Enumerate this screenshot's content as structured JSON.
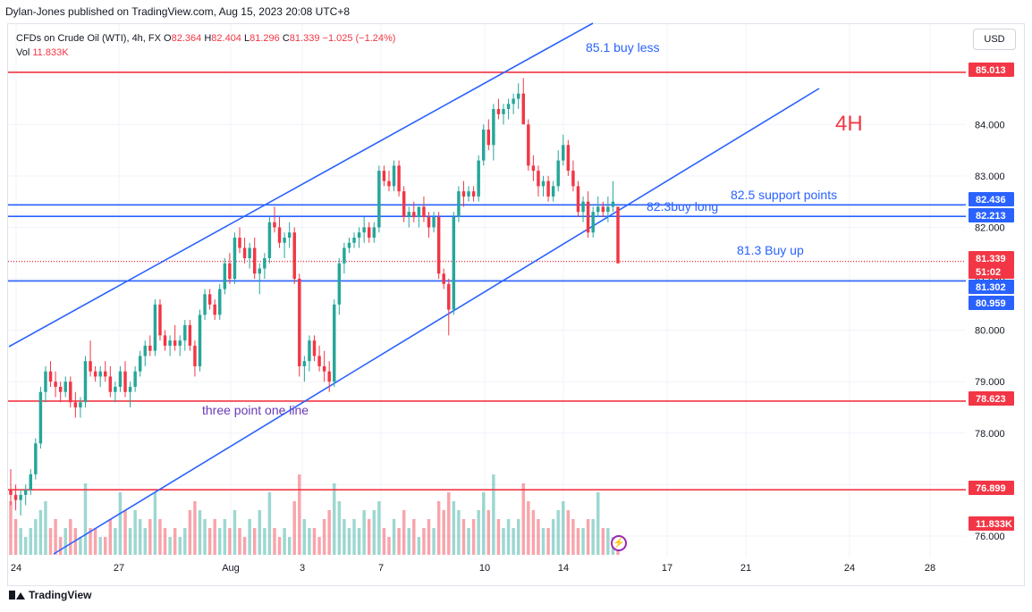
{
  "header": {
    "publisher": "Dylan-Jones published on TradingView.com, Aug 15, 2023 20:08 UTC+8"
  },
  "legend": {
    "symbol": "CFDs on Crude Oil (WTI), 4h, FX",
    "open_label": "O",
    "open": "82.364",
    "high_label": "H",
    "high": "82.404",
    "low_label": "L",
    "low": "81.296",
    "close_label": "C",
    "close": "81.339",
    "change": "−1.025 (−1.24%)",
    "vol_label": "Vol",
    "vol": "11.833K"
  },
  "currency_button": "USD",
  "footer": {
    "brand": "TradingView"
  },
  "colors": {
    "up": "#26a69a",
    "down": "#f23645",
    "blue": "#2962ff",
    "red": "#f23645",
    "purple": "#673ab7"
  },
  "chart_data": {
    "type": "candlestick",
    "symbol": "CFDs on Crude Oil (WTI)",
    "timeframe": "4h",
    "x_tick_labels": [
      "24",
      "27",
      "Aug",
      "3",
      "7",
      "10",
      "14",
      "17",
      "21",
      "24",
      "28"
    ],
    "y_tick_labels": [
      "76.000",
      "77.000",
      "78.000",
      "79.000",
      "80.000",
      "81.000",
      "82.000",
      "83.000",
      "84.000"
    ],
    "ylim": [
      75.6,
      85.95
    ],
    "price_line_labels": [
      {
        "text": "85.013",
        "value": 85.013,
        "color": "#f23645"
      },
      {
        "text": "82.436",
        "value": 82.436,
        "color": "#2962ff"
      },
      {
        "text": "82.213",
        "value": 82.213,
        "color": "#2962ff"
      },
      {
        "text": "81.339",
        "value": 81.339,
        "color": "#f23645"
      },
      {
        "text": "51:02",
        "value": 51.02,
        "color": "#f23645"
      },
      {
        "text": "81.302",
        "value": 81.302,
        "color": "#2962ff"
      },
      {
        "text": "80.959",
        "value": 80.959,
        "color": "#2962ff"
      },
      {
        "text": "78.623",
        "value": 78.623,
        "color": "#f23645"
      },
      {
        "text": "76.899",
        "value": 76.899,
        "color": "#f23645"
      },
      {
        "text": "11.833K",
        "value": 11.833,
        "color": "#f23645"
      }
    ],
    "horizontal_lines": [
      {
        "value": 85.013,
        "color": "#f23645"
      },
      {
        "value": 82.436,
        "color": "#2962ff"
      },
      {
        "value": 82.213,
        "color": "#2962ff"
      },
      {
        "value": 81.339,
        "color": "#f23645",
        "dotted": true
      },
      {
        "value": 80.959,
        "color": "#2962ff"
      },
      {
        "value": 78.623,
        "color": "#f23645"
      },
      {
        "value": 76.899,
        "color": "#f23645"
      }
    ],
    "annotations": [
      {
        "text": "85.1 buy less",
        "color": "#2962ff"
      },
      {
        "text": "4H",
        "color": "#f23645"
      },
      {
        "text": "82.5 support points",
        "color": "#2962ff"
      },
      {
        "text": "82.3buy long",
        "color": "#2962ff"
      },
      {
        "text": "81.3 Buy up",
        "color": "#2962ff"
      },
      {
        "text": "three point one line",
        "color": "#673ab7"
      }
    ],
    "candles": [
      [
        76.9,
        77.3,
        76.6,
        76.8,
        6
      ],
      [
        76.8,
        77.0,
        76.5,
        76.7,
        4
      ],
      [
        76.7,
        76.9,
        76.4,
        76.8,
        3
      ],
      [
        76.8,
        77.0,
        76.6,
        76.9,
        2
      ],
      [
        76.9,
        77.3,
        76.8,
        77.2,
        3
      ],
      [
        77.2,
        77.9,
        77.1,
        77.8,
        4
      ],
      [
        77.8,
        78.9,
        77.7,
        78.8,
        5
      ],
      [
        78.8,
        79.3,
        78.6,
        79.2,
        6
      ],
      [
        79.2,
        79.4,
        78.9,
        79.0,
        3
      ],
      [
        79.0,
        79.2,
        78.7,
        78.9,
        4
      ],
      [
        78.9,
        79.0,
        78.6,
        78.8,
        2
      ],
      [
        78.8,
        79.1,
        78.7,
        79.0,
        3
      ],
      [
        79.0,
        79.1,
        78.5,
        78.6,
        4
      ],
      [
        78.6,
        78.8,
        78.3,
        78.5,
        3
      ],
      [
        78.5,
        78.7,
        78.3,
        78.6,
        2
      ],
      [
        78.6,
        79.5,
        78.5,
        79.4,
        8
      ],
      [
        79.4,
        79.8,
        79.1,
        79.2,
        3
      ],
      [
        79.2,
        79.3,
        79.0,
        79.1,
        3
      ],
      [
        79.1,
        79.3,
        78.9,
        79.2,
        2
      ],
      [
        79.2,
        79.4,
        79.0,
        79.1,
        2
      ],
      [
        79.1,
        79.3,
        78.7,
        78.8,
        4
      ],
      [
        78.8,
        79.0,
        78.6,
        78.9,
        3
      ],
      [
        78.9,
        79.3,
        78.8,
        79.2,
        7
      ],
      [
        79.2,
        79.4,
        78.7,
        78.8,
        5
      ],
      [
        78.8,
        79.0,
        78.5,
        78.9,
        3
      ],
      [
        78.9,
        79.3,
        78.8,
        79.2,
        5
      ],
      [
        79.2,
        79.6,
        79.1,
        79.5,
        4
      ],
      [
        79.5,
        79.8,
        79.3,
        79.7,
        3
      ],
      [
        79.7,
        79.9,
        79.5,
        79.6,
        4
      ],
      [
        79.6,
        80.6,
        79.5,
        80.5,
        7
      ],
      [
        80.5,
        80.6,
        79.8,
        79.9,
        4
      ],
      [
        79.9,
        80.0,
        79.6,
        79.7,
        3
      ],
      [
        79.7,
        79.9,
        79.5,
        79.8,
        2
      ],
      [
        79.8,
        80.1,
        79.6,
        79.7,
        3
      ],
      [
        79.7,
        79.9,
        79.5,
        79.8,
        2
      ],
      [
        79.8,
        80.2,
        79.6,
        80.1,
        3
      ],
      [
        80.1,
        80.2,
        79.6,
        79.7,
        5
      ],
      [
        79.7,
        79.8,
        79.1,
        79.3,
        6
      ],
      [
        79.3,
        80.4,
        79.2,
        80.3,
        5
      ],
      [
        80.3,
        80.8,
        80.2,
        80.7,
        4
      ],
      [
        80.7,
        80.8,
        80.4,
        80.5,
        3
      ],
      [
        80.5,
        80.6,
        80.2,
        80.3,
        4
      ],
      [
        80.3,
        80.9,
        80.2,
        80.8,
        3
      ],
      [
        80.8,
        81.4,
        80.7,
        81.3,
        4
      ],
      [
        81.3,
        81.5,
        80.9,
        81.0,
        3
      ],
      [
        81.0,
        81.9,
        80.9,
        81.8,
        5
      ],
      [
        81.8,
        82.0,
        81.5,
        81.6,
        3
      ],
      [
        81.6,
        81.8,
        81.3,
        81.4,
        2
      ],
      [
        81.4,
        81.7,
        81.2,
        81.6,
        4
      ],
      [
        81.6,
        81.8,
        81.0,
        81.1,
        3
      ],
      [
        81.1,
        81.3,
        80.7,
        81.2,
        5
      ],
      [
        81.2,
        81.5,
        81.0,
        81.4,
        3
      ],
      [
        81.4,
        82.2,
        81.3,
        82.1,
        7
      ],
      [
        82.1,
        82.4,
        81.9,
        82.0,
        3
      ],
      [
        82.0,
        82.2,
        81.6,
        81.7,
        2
      ],
      [
        81.7,
        81.9,
        81.4,
        81.8,
        3
      ],
      [
        81.8,
        82.1,
        81.6,
        81.9,
        2
      ],
      [
        81.9,
        82.0,
        80.9,
        81.0,
        6
      ],
      [
        81.0,
        81.1,
        79.1,
        79.3,
        9
      ],
      [
        79.3,
        79.5,
        79.0,
        79.4,
        4
      ],
      [
        79.4,
        79.9,
        79.2,
        79.8,
        3
      ],
      [
        79.8,
        79.9,
        79.4,
        79.5,
        3
      ],
      [
        79.5,
        79.7,
        79.2,
        79.3,
        2
      ],
      [
        79.3,
        79.6,
        79.0,
        79.2,
        4
      ],
      [
        79.2,
        79.4,
        78.8,
        79.0,
        5
      ],
      [
        79.0,
        80.6,
        78.9,
        80.5,
        8
      ],
      [
        80.5,
        81.4,
        80.3,
        81.3,
        6
      ],
      [
        81.3,
        81.7,
        81.1,
        81.6,
        4
      ],
      [
        81.6,
        81.8,
        81.5,
        81.7,
        3
      ],
      [
        81.7,
        81.9,
        81.6,
        81.8,
        4
      ],
      [
        81.8,
        82.0,
        81.6,
        81.9,
        3
      ],
      [
        81.9,
        82.2,
        81.7,
        82.0,
        5
      ],
      [
        82.0,
        82.1,
        81.7,
        81.8,
        4
      ],
      [
        81.8,
        82.1,
        81.7,
        82.0,
        5
      ],
      [
        82.0,
        83.2,
        81.9,
        83.1,
        6
      ],
      [
        83.1,
        83.2,
        82.8,
        82.9,
        3
      ],
      [
        82.9,
        83.1,
        82.7,
        82.8,
        2
      ],
      [
        82.8,
        83.3,
        82.7,
        83.2,
        4
      ],
      [
        83.2,
        83.3,
        82.6,
        82.7,
        3
      ],
      [
        82.7,
        82.8,
        82.1,
        82.2,
        5
      ],
      [
        82.2,
        82.4,
        82.0,
        82.3,
        3
      ],
      [
        82.3,
        82.5,
        82.1,
        82.2,
        4
      ],
      [
        82.2,
        82.4,
        82.0,
        82.4,
        2
      ],
      [
        82.4,
        82.6,
        82.1,
        82.2,
        3
      ],
      [
        82.2,
        82.3,
        81.8,
        82.0,
        4
      ],
      [
        82.0,
        82.3,
        81.9,
        82.2,
        3
      ],
      [
        82.2,
        82.3,
        81.0,
        81.1,
        6
      ],
      [
        81.1,
        81.2,
        80.8,
        80.9,
        5
      ],
      [
        80.9,
        81.0,
        79.9,
        80.4,
        7
      ],
      [
        80.4,
        82.3,
        80.3,
        82.2,
        6
      ],
      [
        82.2,
        82.8,
        82.1,
        82.7,
        5
      ],
      [
        82.7,
        82.9,
        82.4,
        82.6,
        4
      ],
      [
        82.6,
        82.8,
        82.5,
        82.7,
        3
      ],
      [
        82.7,
        82.8,
        82.5,
        82.6,
        4
      ],
      [
        82.6,
        83.4,
        82.5,
        83.3,
        5
      ],
      [
        83.3,
        84.0,
        83.2,
        83.9,
        7
      ],
      [
        83.9,
        84.1,
        83.5,
        83.6,
        5
      ],
      [
        83.6,
        84.4,
        83.3,
        84.3,
        9
      ],
      [
        84.3,
        84.5,
        84.1,
        84.2,
        4
      ],
      [
        84.2,
        84.4,
        84.0,
        84.3,
        3
      ],
      [
        84.3,
        84.5,
        84.1,
        84.4,
        4
      ],
      [
        84.4,
        84.6,
        84.2,
        84.5,
        3
      ],
      [
        84.5,
        84.8,
        84.3,
        84.6,
        4
      ],
      [
        84.6,
        84.9,
        84.1,
        84.0,
        8
      ],
      [
        84.0,
        84.1,
        83.1,
        83.2,
        6
      ],
      [
        83.2,
        83.4,
        82.9,
        83.1,
        5
      ],
      [
        83.1,
        83.2,
        82.6,
        82.8,
        4
      ],
      [
        82.8,
        83.0,
        82.6,
        82.9,
        3
      ],
      [
        82.9,
        83.0,
        82.5,
        82.6,
        3
      ],
      [
        82.6,
        82.9,
        82.5,
        82.8,
        4
      ],
      [
        82.8,
        83.5,
        82.7,
        83.3,
        5
      ],
      [
        83.3,
        83.8,
        83.2,
        83.6,
        6
      ],
      [
        83.6,
        83.7,
        83.0,
        83.1,
        5
      ],
      [
        83.1,
        83.3,
        82.7,
        82.8,
        4
      ],
      [
        82.8,
        82.9,
        82.2,
        82.3,
        3
      ],
      [
        82.3,
        82.6,
        82.1,
        82.5,
        3
      ],
      [
        82.5,
        82.7,
        81.8,
        81.9,
        4
      ],
      [
        81.9,
        82.4,
        81.8,
        82.3,
        4
      ],
      [
        82.3,
        82.6,
        82.2,
        82.4,
        7
      ],
      [
        82.4,
        82.5,
        82.2,
        82.3,
        3
      ],
      [
        82.3,
        82.6,
        82.1,
        82.4,
        3
      ],
      [
        82.4,
        82.9,
        82.3,
        82.5,
        2
      ],
      [
        82.4,
        82.4,
        81.3,
        81.3,
        2
      ]
    ]
  }
}
